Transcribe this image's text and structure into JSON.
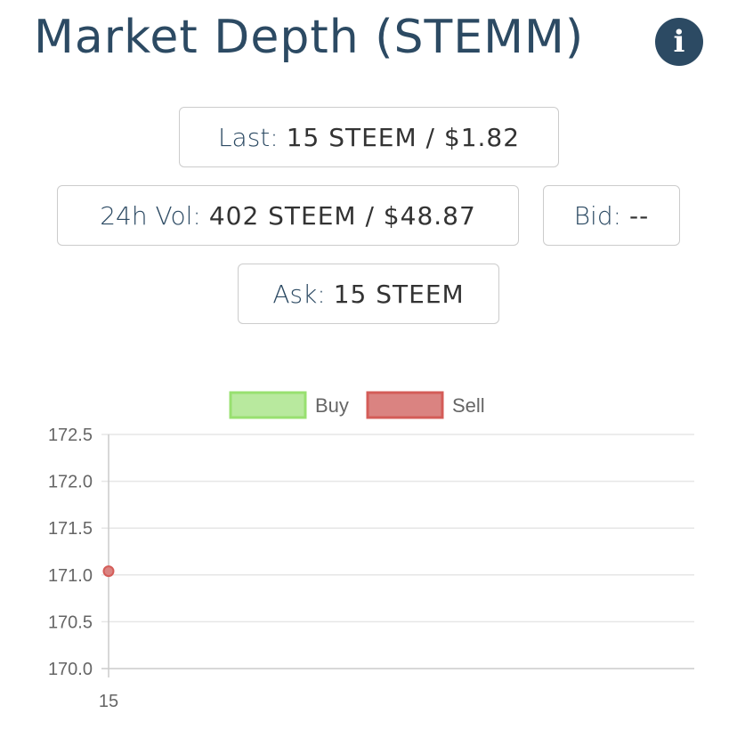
{
  "header": {
    "title": "Market Depth (STEMM)",
    "info_icon": "info-icon"
  },
  "stats": {
    "last": {
      "label": "Last:",
      "value": "15 STEEM / $1.82"
    },
    "vol": {
      "label": "24h Vol:",
      "value": "402 STEEM / $48.87"
    },
    "bid": {
      "label": "Bid:",
      "value": "--"
    },
    "ask": {
      "label": "Ask:",
      "value": "15 STEEM"
    }
  },
  "chart_data": {
    "type": "line",
    "title": "",
    "xlabel": "",
    "ylabel": "",
    "x_ticks": [
      "15"
    ],
    "y_ticks": [
      "170.0",
      "170.5",
      "171.0",
      "171.5",
      "172.0",
      "172.5"
    ],
    "ylim": [
      170.0,
      172.5
    ],
    "grid": true,
    "legend_position": "top",
    "series": [
      {
        "name": "Buy",
        "color": "#b8e99e",
        "border": "#98e070",
        "points": []
      },
      {
        "name": "Sell",
        "color": "#da8381",
        "border": "#d45c58",
        "points": [
          {
            "x": 15,
            "y": 171.04
          }
        ]
      }
    ]
  }
}
